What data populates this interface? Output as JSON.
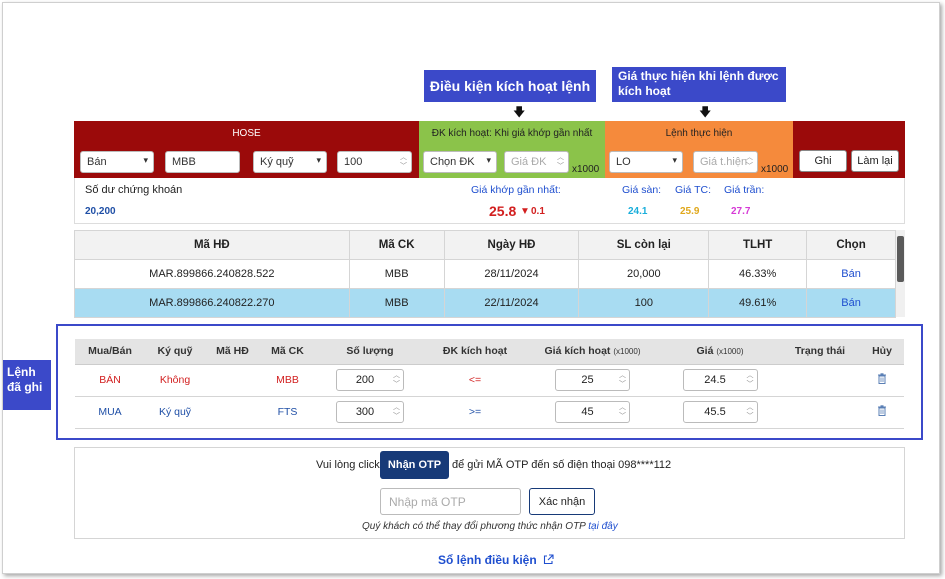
{
  "callouts": {
    "trigger": "Điều kiện kích hoạt lệnh",
    "exec": "Giá thực hiện khi lệnh được kích hoạt",
    "saved": "Lệnh đã ghi"
  },
  "order_bar": {
    "exchange": "HOSE",
    "side": "Bán",
    "symbol": "MBB",
    "account_type": "Ký quỹ",
    "quantity": "100",
    "trigger_title": "ĐK kích hoạt: Khi giá khớp gần nhất",
    "trigger_condition": "Chọn ĐK",
    "trigger_price_placeholder": "Giá ĐK",
    "multiplier": "x1000",
    "exec_title": "Lệnh thực hiện",
    "order_type": "LO",
    "exec_price_placeholder": "Giá t.hiện",
    "save_label": "Ghi",
    "reset_label": "Làm lại"
  },
  "info": {
    "balance_label": "Số dư chứng khoán",
    "balance_value": "20,200",
    "last_price_label": "Giá khớp gần nhất:",
    "last_price": "25.8",
    "change": "0.1",
    "floor_label": "Giá sàn:",
    "floor_value": "24.1",
    "ref_label": "Giá TC:",
    "ref_value": "25.9",
    "ceil_label": "Giá trần:",
    "ceil_value": "27.7"
  },
  "contracts": {
    "headers": [
      "Mã HĐ",
      "Mã CK",
      "Ngày HĐ",
      "SL còn lại",
      "TLHT",
      "Chọn"
    ],
    "rows": [
      {
        "id": "MAR.899866.240828.522",
        "symbol": "MBB",
        "date": "28/11/2024",
        "remaining": "20,000",
        "ratio": "46.33%",
        "action": "Bán"
      },
      {
        "id": "MAR.899866.240822.270",
        "symbol": "MBB",
        "date": "22/11/2024",
        "remaining": "100",
        "ratio": "49.61%",
        "action": "Bán"
      }
    ]
  },
  "saved": {
    "headers": {
      "side": "Mua/Bán",
      "acct": "Ký quỹ",
      "contract": "Mã HĐ",
      "symbol": "Mã CK",
      "qty": "Số lượng",
      "cond": "ĐK kích hoạt",
      "trig": "Giá kích hoạt",
      "trig_unit": "(x1000)",
      "price": "Giá",
      "price_unit": "(x1000)",
      "status": "Trạng thái",
      "cancel": "Hủy"
    },
    "rows": [
      {
        "side": "BÁN",
        "acct": "Không",
        "symbol": "MBB",
        "qty": "200",
        "cond": "<=",
        "trig": "25",
        "price": "24.5"
      },
      {
        "side": "MUA",
        "acct": "Ký quỹ",
        "symbol": "FTS",
        "qty": "300",
        "cond": ">=",
        "trig": "45",
        "price": "45.5"
      }
    ]
  },
  "otp": {
    "prefix": "Vui lòng click",
    "button": "Nhận OTP",
    "suffix": "để gửi MÃ OTP đến số điện thoại 098****112",
    "input_placeholder": "Nhập mã OTP",
    "confirm": "Xác nhận",
    "note": "Quý khách có thể thay đổi phương thức nhận OTP",
    "note_link": "tại đây"
  },
  "footer_link": "Sổ lệnh điều kiện",
  "colors": {
    "callout": "#3b49c9",
    "hose": "#9b0a0a",
    "trigger": "#8bc34a",
    "exec": "#f58a3c",
    "navy": "#173a78"
  }
}
